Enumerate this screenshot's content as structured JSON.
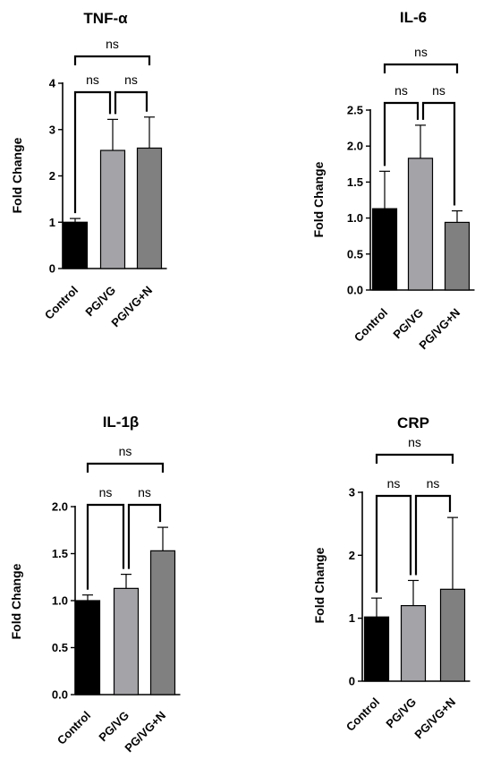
{
  "chart_data": [
    {
      "type": "bar",
      "title": "TNF-α",
      "ylabel": "Fold Change",
      "categories": [
        "Control",
        "PG/VG",
        "PG/VG+N"
      ],
      "values": [
        1.0,
        2.55,
        2.6
      ],
      "error_upper": [
        1.08,
        3.22,
        3.27
      ],
      "ylim": [
        0,
        4
      ],
      "yticks": [
        "0",
        "1",
        "2",
        "3",
        "4"
      ],
      "bar_colors": [
        "#000000",
        "#a4a4a8",
        "#808080"
      ],
      "significance": [
        {
          "pair": [
            0,
            1
          ],
          "label": "ns"
        },
        {
          "pair": [
            1,
            2
          ],
          "label": "ns"
        },
        {
          "pair": [
            0,
            2
          ],
          "label": "ns"
        }
      ]
    },
    {
      "type": "bar",
      "title": "IL-6",
      "ylabel": "Fold Change",
      "categories": [
        "Control",
        "PG/VG",
        "PG/VG+N"
      ],
      "values": [
        1.13,
        1.83,
        0.94
      ],
      "error_upper": [
        1.65,
        2.29,
        1.1
      ],
      "ylim": [
        0,
        2.5
      ],
      "yticks": [
        "0.0",
        "0.5",
        "1.0",
        "1.5",
        "2.0",
        "2.5"
      ],
      "bar_colors": [
        "#000000",
        "#a4a4a8",
        "#808080"
      ],
      "significance": [
        {
          "pair": [
            0,
            1
          ],
          "label": "ns"
        },
        {
          "pair": [
            1,
            2
          ],
          "label": "ns"
        },
        {
          "pair": [
            0,
            2
          ],
          "label": "ns"
        }
      ]
    },
    {
      "type": "bar",
      "title": "IL-1β",
      "ylabel": "Fold Change",
      "categories": [
        "Control",
        "PG/VG",
        "PG/VG+N"
      ],
      "values": [
        1.0,
        1.13,
        1.53
      ],
      "error_upper": [
        1.06,
        1.28,
        1.78
      ],
      "ylim": [
        0,
        2.0
      ],
      "yticks": [
        "0.0",
        "0.5",
        "1.0",
        "1.5",
        "2.0"
      ],
      "bar_colors": [
        "#000000",
        "#a4a4a8",
        "#808080"
      ],
      "significance": [
        {
          "pair": [
            0,
            1
          ],
          "label": "ns"
        },
        {
          "pair": [
            1,
            2
          ],
          "label": "ns"
        },
        {
          "pair": [
            0,
            2
          ],
          "label": "ns"
        }
      ]
    },
    {
      "type": "bar",
      "title": "CRP",
      "ylabel": "Fold Change",
      "categories": [
        "Control",
        "PG/VG",
        "PG/VG+N"
      ],
      "values": [
        1.02,
        1.2,
        1.46
      ],
      "error_upper": [
        1.32,
        1.6,
        2.6
      ],
      "ylim": [
        0,
        3
      ],
      "yticks": [
        "0",
        "1",
        "2",
        "3"
      ],
      "bar_colors": [
        "#000000",
        "#a4a4a8",
        "#808080"
      ],
      "significance": [
        {
          "pair": [
            0,
            1
          ],
          "label": "ns"
        },
        {
          "pair": [
            1,
            2
          ],
          "label": "ns"
        },
        {
          "pair": [
            0,
            2
          ],
          "label": "ns"
        }
      ]
    }
  ]
}
